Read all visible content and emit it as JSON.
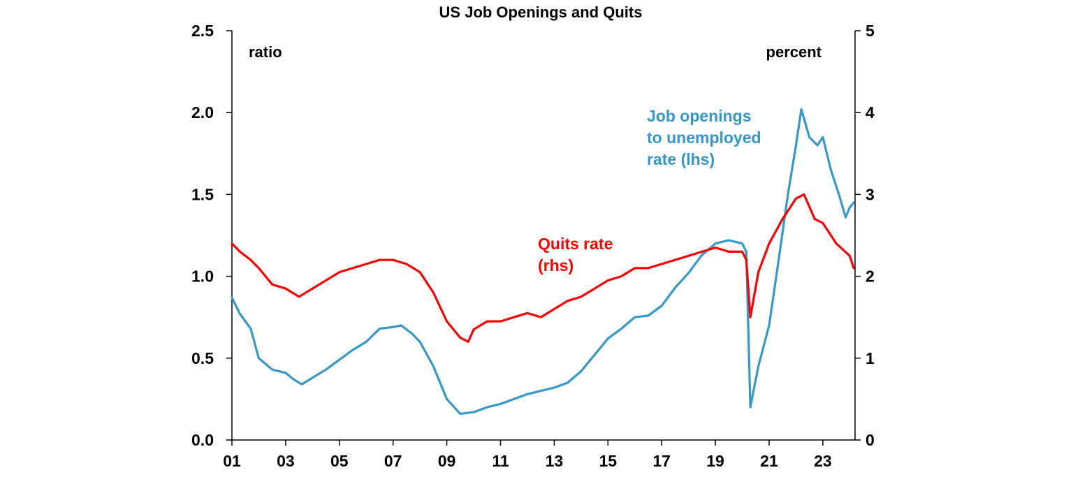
{
  "chart_data": {
    "type": "line",
    "title": "US Job Openings and Quits",
    "x_range": [
      2001,
      2024.2
    ],
    "x_ticks": [
      {
        "value": 2001,
        "label": "01"
      },
      {
        "value": 2003,
        "label": "03"
      },
      {
        "value": 2005,
        "label": "05"
      },
      {
        "value": 2007,
        "label": "07"
      },
      {
        "value": 2009,
        "label": "09"
      },
      {
        "value": 2011,
        "label": "11"
      },
      {
        "value": 2013,
        "label": "13"
      },
      {
        "value": 2015,
        "label": "15"
      },
      {
        "value": 2017,
        "label": "17"
      },
      {
        "value": 2019,
        "label": "19"
      },
      {
        "value": 2021,
        "label": "21"
      },
      {
        "value": 2023,
        "label": "23"
      }
    ],
    "y_left": {
      "unit_label": "ratio",
      "range": [
        0,
        2.5
      ],
      "ticks": [
        "0.0",
        "0.5",
        "1.0",
        "1.5",
        "2.0",
        "2.5"
      ]
    },
    "y_right": {
      "unit_label": "percent",
      "range": [
        0,
        5
      ],
      "ticks": [
        "0",
        "1",
        "2",
        "3",
        "4",
        "5"
      ]
    },
    "grid": false,
    "series": [
      {
        "name": "Job openings to unemployed rate (lhs)",
        "axis": "left",
        "color": "#3399CC",
        "label_lines": [
          "Job openings",
          "to unemployed",
          "rate (lhs)"
        ],
        "points": [
          [
            2001.0,
            0.87
          ],
          [
            2001.3,
            0.77
          ],
          [
            2001.7,
            0.68
          ],
          [
            2002.0,
            0.5
          ],
          [
            2002.5,
            0.43
          ],
          [
            2003.0,
            0.41
          ],
          [
            2003.3,
            0.37
          ],
          [
            2003.6,
            0.34
          ],
          [
            2004.0,
            0.38
          ],
          [
            2004.5,
            0.43
          ],
          [
            2005.0,
            0.49
          ],
          [
            2005.5,
            0.55
          ],
          [
            2006.0,
            0.6
          ],
          [
            2006.5,
            0.68
          ],
          [
            2007.0,
            0.69
          ],
          [
            2007.3,
            0.7
          ],
          [
            2007.7,
            0.65
          ],
          [
            2008.0,
            0.6
          ],
          [
            2008.5,
            0.45
          ],
          [
            2009.0,
            0.25
          ],
          [
            2009.5,
            0.16
          ],
          [
            2010.0,
            0.17
          ],
          [
            2010.5,
            0.2
          ],
          [
            2011.0,
            0.22
          ],
          [
            2011.5,
            0.25
          ],
          [
            2012.0,
            0.28
          ],
          [
            2012.5,
            0.3
          ],
          [
            2013.0,
            0.32
          ],
          [
            2013.5,
            0.35
          ],
          [
            2014.0,
            0.42
          ],
          [
            2014.5,
            0.52
          ],
          [
            2015.0,
            0.62
          ],
          [
            2015.5,
            0.68
          ],
          [
            2016.0,
            0.75
          ],
          [
            2016.5,
            0.76
          ],
          [
            2017.0,
            0.82
          ],
          [
            2017.5,
            0.93
          ],
          [
            2018.0,
            1.02
          ],
          [
            2018.5,
            1.13
          ],
          [
            2019.0,
            1.2
          ],
          [
            2019.5,
            1.22
          ],
          [
            2020.0,
            1.2
          ],
          [
            2020.15,
            1.15
          ],
          [
            2020.3,
            0.2
          ],
          [
            2020.6,
            0.45
          ],
          [
            2021.0,
            0.7
          ],
          [
            2021.4,
            1.15
          ],
          [
            2021.7,
            1.5
          ],
          [
            2022.0,
            1.8
          ],
          [
            2022.2,
            2.02
          ],
          [
            2022.5,
            1.85
          ],
          [
            2022.8,
            1.8
          ],
          [
            2023.0,
            1.85
          ],
          [
            2023.3,
            1.65
          ],
          [
            2023.6,
            1.5
          ],
          [
            2023.85,
            1.36
          ],
          [
            2024.0,
            1.42
          ],
          [
            2024.15,
            1.45
          ]
        ]
      },
      {
        "name": "Quits rate (rhs)",
        "axis": "right",
        "color": "#FF0000",
        "label_lines": [
          "Quits rate",
          "(rhs)"
        ],
        "points": [
          [
            2001.0,
            2.4
          ],
          [
            2001.3,
            2.3
          ],
          [
            2001.7,
            2.2
          ],
          [
            2002.0,
            2.1
          ],
          [
            2002.5,
            1.9
          ],
          [
            2003.0,
            1.85
          ],
          [
            2003.5,
            1.75
          ],
          [
            2004.0,
            1.85
          ],
          [
            2004.5,
            1.95
          ],
          [
            2005.0,
            2.05
          ],
          [
            2005.5,
            2.1
          ],
          [
            2006.0,
            2.15
          ],
          [
            2006.5,
            2.2
          ],
          [
            2007.0,
            2.2
          ],
          [
            2007.5,
            2.15
          ],
          [
            2008.0,
            2.05
          ],
          [
            2008.5,
            1.8
          ],
          [
            2009.0,
            1.45
          ],
          [
            2009.5,
            1.25
          ],
          [
            2009.8,
            1.2
          ],
          [
            2010.0,
            1.35
          ],
          [
            2010.5,
            1.45
          ],
          [
            2011.0,
            1.45
          ],
          [
            2011.5,
            1.5
          ],
          [
            2012.0,
            1.55
          ],
          [
            2012.5,
            1.5
          ],
          [
            2013.0,
            1.6
          ],
          [
            2013.5,
            1.7
          ],
          [
            2014.0,
            1.75
          ],
          [
            2014.5,
            1.85
          ],
          [
            2015.0,
            1.95
          ],
          [
            2015.5,
            2.0
          ],
          [
            2016.0,
            2.1
          ],
          [
            2016.5,
            2.1
          ],
          [
            2017.0,
            2.15
          ],
          [
            2017.5,
            2.2
          ],
          [
            2018.0,
            2.25
          ],
          [
            2018.5,
            2.3
          ],
          [
            2019.0,
            2.35
          ],
          [
            2019.5,
            2.3
          ],
          [
            2020.0,
            2.3
          ],
          [
            2020.15,
            2.2
          ],
          [
            2020.3,
            1.5
          ],
          [
            2020.6,
            2.05
          ],
          [
            2021.0,
            2.4
          ],
          [
            2021.5,
            2.7
          ],
          [
            2022.0,
            2.95
          ],
          [
            2022.3,
            3.0
          ],
          [
            2022.7,
            2.7
          ],
          [
            2023.0,
            2.65
          ],
          [
            2023.5,
            2.4
          ],
          [
            2024.0,
            2.25
          ],
          [
            2024.15,
            2.1
          ]
        ]
      }
    ]
  }
}
